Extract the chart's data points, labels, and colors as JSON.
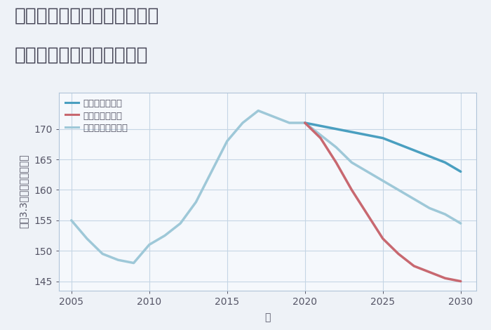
{
  "title_line1": "兵庫県西宮市上ヶ原四番町の",
  "title_line2": "中古マンションの価格推移",
  "xlabel": "年",
  "ylabel_parts": [
    "平（3.3㎡）単価（万円）"
  ],
  "background_color": "#eef2f7",
  "plot_background": "#f5f8fc",
  "grid_color": "#c5d5e5",
  "normal_scenario": {
    "label": "ノーマルシナリオ",
    "color": "#9ec8d8",
    "x": [
      2005,
      2006,
      2007,
      2008,
      2009,
      2010,
      2011,
      2012,
      2013,
      2014,
      2015,
      2016,
      2017,
      2018,
      2019,
      2020,
      2021,
      2022,
      2023,
      2024,
      2025,
      2026,
      2027,
      2028,
      2029,
      2030
    ],
    "y": [
      155.0,
      152.0,
      149.5,
      148.5,
      148.0,
      151.0,
      152.5,
      154.5,
      158.0,
      163.0,
      168.0,
      171.0,
      173.0,
      172.0,
      171.0,
      171.0,
      169.0,
      167.0,
      164.5,
      163.0,
      161.5,
      160.0,
      158.5,
      157.0,
      156.0,
      154.5
    ]
  },
  "good_scenario": {
    "label": "グッドシナリオ",
    "color": "#4a9fc0",
    "x": [
      2020,
      2021,
      2022,
      2023,
      2024,
      2025,
      2026,
      2027,
      2028,
      2029,
      2030
    ],
    "y": [
      171.0,
      170.5,
      170.0,
      169.5,
      169.0,
      168.5,
      167.5,
      166.5,
      165.5,
      164.5,
      163.0
    ]
  },
  "bad_scenario": {
    "label": "バッドシナリオ",
    "color": "#c86870",
    "x": [
      2020,
      2021,
      2022,
      2023,
      2024,
      2025,
      2026,
      2027,
      2028,
      2029,
      2030
    ],
    "y": [
      171.0,
      168.5,
      164.5,
      160.0,
      156.0,
      152.0,
      149.5,
      147.5,
      146.5,
      145.5,
      145.0
    ]
  },
  "ylim": [
    143.5,
    176.0
  ],
  "xlim": [
    2004.2,
    2031.0
  ],
  "yticks": [
    145,
    150,
    155,
    160,
    165,
    170
  ],
  "xticks": [
    2005,
    2010,
    2015,
    2020,
    2025,
    2030
  ],
  "linewidth": 2.5,
  "title_fontsize": 19,
  "tick_fontsize": 10,
  "label_fontsize": 10
}
